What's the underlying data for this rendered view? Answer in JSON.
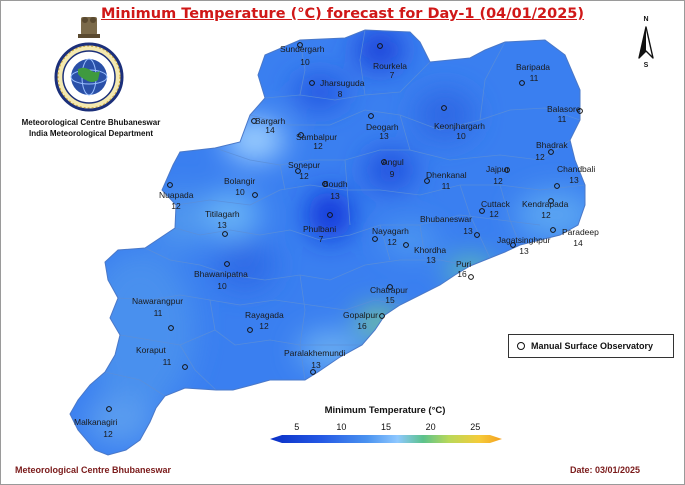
{
  "title": "Minimum Temperature (°C) forecast for Day-1 (04/01/2025)",
  "organization": {
    "line1": "Meteorological Centre Bhubaneswar",
    "line2": "India Meteorological Department"
  },
  "north_arrow": {
    "n": "N",
    "s": "S"
  },
  "legend": {
    "label": "Manual Surface Observatory"
  },
  "colorbar": {
    "title": "Minimum Temperature (°C)",
    "ticks": [
      5,
      10,
      15,
      20,
      25
    ],
    "range": [
      2,
      28
    ]
  },
  "footer": {
    "left": "Meteorological Centre Bhubaneswar",
    "right": "Date: 03/01/2025"
  },
  "stations": [
    {
      "name": "Sundergarh",
      "value": "10"
    },
    {
      "name": "Rourkela",
      "value": "7"
    },
    {
      "name": "Jharsuguda",
      "value": "8"
    },
    {
      "name": "Baripada",
      "value": "11"
    },
    {
      "name": "Bargarh",
      "value": "14"
    },
    {
      "name": "Sambalpur",
      "value": "12"
    },
    {
      "name": "Deogarh",
      "value": "13"
    },
    {
      "name": "Keonjhargarh",
      "value": "10"
    },
    {
      "name": "Balasore",
      "value": "11"
    },
    {
      "name": "Bhadrak",
      "value": "12"
    },
    {
      "name": "Sonepur",
      "value": "12"
    },
    {
      "name": "Angul",
      "value": "9"
    },
    {
      "name": "Dhenkanal",
      "value": "11"
    },
    {
      "name": "Jajpur",
      "value": "12"
    },
    {
      "name": "Chandbali",
      "value": "13"
    },
    {
      "name": "Bolangir",
      "value": "10"
    },
    {
      "name": "Boudh",
      "value": "13"
    },
    {
      "name": "Nuapada",
      "value": "12"
    },
    {
      "name": "Cuttack",
      "value": "12"
    },
    {
      "name": "Kendrapada",
      "value": "12"
    },
    {
      "name": "Titilagarh",
      "value": "13"
    },
    {
      "name": "Phulbani",
      "value": "7"
    },
    {
      "name": "Bhubaneswar",
      "value": "13"
    },
    {
      "name": "Paradeep",
      "value": "14"
    },
    {
      "name": "Nayagarh",
      "value": "12"
    },
    {
      "name": "Jagatsinghpur",
      "value": "13"
    },
    {
      "name": "Khordha",
      "value": "13"
    },
    {
      "name": "Bhawanipatna",
      "value": "10"
    },
    {
      "name": "Puri",
      "value": "16"
    },
    {
      "name": "Chatrapur",
      "value": "15"
    },
    {
      "name": "Nawarangpur",
      "value": "11"
    },
    {
      "name": "Rayagada",
      "value": "12"
    },
    {
      "name": "Gopalpur",
      "value": "16"
    },
    {
      "name": "Koraput",
      "value": "11"
    },
    {
      "name": "Paralakhemundi",
      "value": "13"
    },
    {
      "name": "Malkanagiri",
      "value": "12"
    }
  ]
}
